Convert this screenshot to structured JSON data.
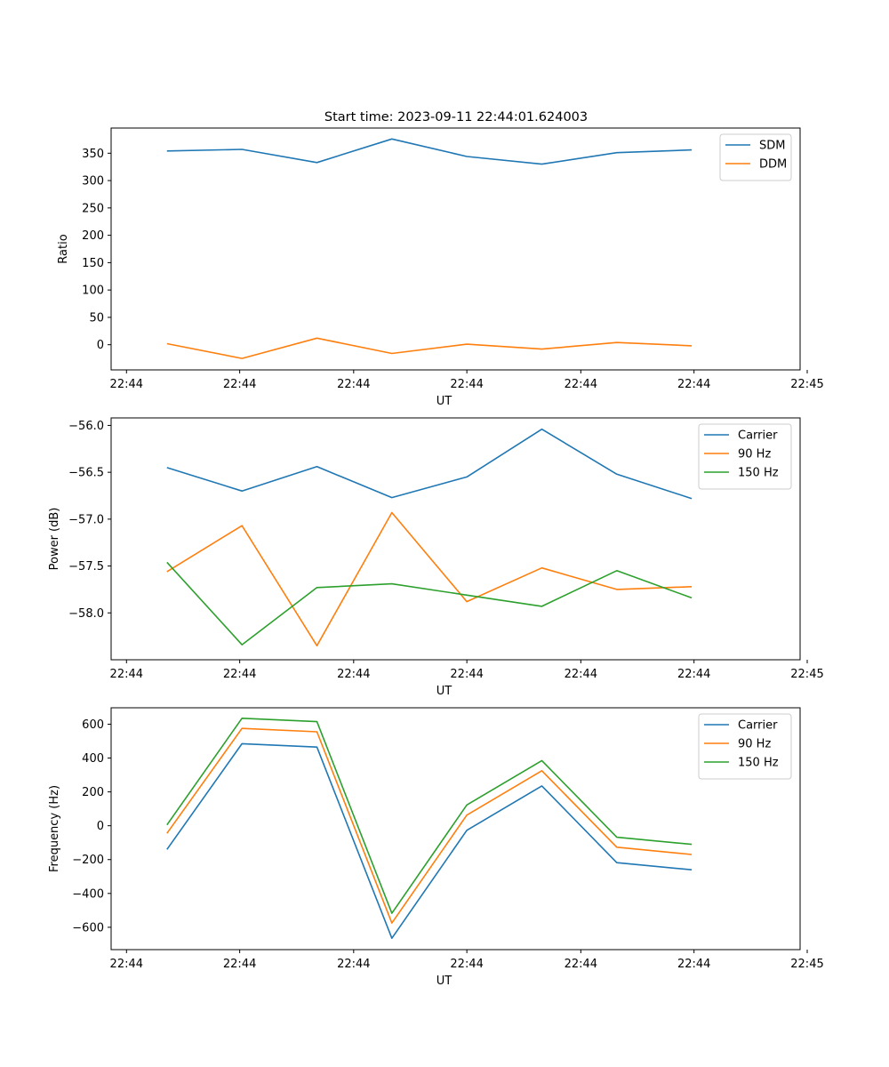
{
  "figure_title": "Start time: 2023-09-11 22:44:01.624003",
  "chart_data": [
    {
      "type": "line",
      "title": "Start time: 2023-09-11 22:44:01.624003",
      "xlabel": "UT",
      "ylabel": "Ratio",
      "x_tick_labels": [
        "22:44",
        "22:44",
        "22:44",
        "22:44",
        "22:44",
        "22:44",
        "22:45"
      ],
      "y_ticks": [
        0,
        50,
        100,
        150,
        200,
        250,
        300,
        350
      ],
      "y_tick_labels": [
        "0",
        "50",
        "100",
        "150",
        "200",
        "250",
        "300",
        "350"
      ],
      "ylim": [
        -46,
        396
      ],
      "legend_position": "upper right",
      "x_index_range": [
        -0.745,
        8.445
      ],
      "x_tick_index": [
        -0.54,
        0.97,
        2.49,
        4.0,
        5.52,
        7.03,
        8.54
      ],
      "series": [
        {
          "name": "SDM",
          "color": "#1f77b4",
          "values": [
            354,
            357,
            333,
            376,
            344,
            330,
            351,
            356
          ]
        },
        {
          "name": "DDM",
          "color": "#ff7f0e",
          "values": [
            2,
            -25,
            12,
            -16,
            1,
            -8,
            4,
            -2
          ]
        }
      ]
    },
    {
      "type": "line",
      "title": "",
      "xlabel": "UT",
      "ylabel": "Power (dB)",
      "x_tick_labels": [
        "22:44",
        "22:44",
        "22:44",
        "22:44",
        "22:44",
        "22:44",
        "22:45"
      ],
      "y_ticks": [
        -58.0,
        -57.5,
        -57.0,
        -56.5,
        -56.0
      ],
      "y_tick_labels": [
        "−58.0",
        "−57.5",
        "−57.0",
        "−56.5",
        "−56.0"
      ],
      "ylim": [
        -58.5,
        -55.92
      ],
      "legend_position": "upper right",
      "x_index_range": [
        -0.745,
        8.445
      ],
      "x_tick_index": [
        -0.54,
        0.97,
        2.49,
        4.0,
        5.52,
        7.03,
        8.54
      ],
      "series": [
        {
          "name": "Carrier",
          "color": "#1f77b4",
          "values": [
            -56.45,
            -56.7,
            -56.44,
            -56.77,
            -56.55,
            -56.04,
            -56.52,
            -56.78
          ]
        },
        {
          "name": "90 Hz",
          "color": "#ff7f0e",
          "values": [
            -57.56,
            -57.07,
            -58.35,
            -56.93,
            -57.88,
            -57.52,
            -57.75,
            -57.72
          ]
        },
        {
          "name": "150 Hz",
          "color": "#2ca02c",
          "values": [
            -57.46,
            -58.34,
            -57.73,
            -57.69,
            -57.81,
            -57.93,
            -57.55,
            -57.84
          ]
        }
      ]
    },
    {
      "type": "line",
      "title": "",
      "xlabel": "UT",
      "ylabel": "Frequency (Hz)",
      "x_tick_labels": [
        "22:44",
        "22:44",
        "22:44",
        "22:44",
        "22:44",
        "22:44",
        "22:45"
      ],
      "y_ticks": [
        -600,
        -400,
        -200,
        0,
        200,
        400,
        600
      ],
      "y_tick_labels": [
        "−600",
        "−400",
        "−200",
        "0",
        "200",
        "400",
        "600"
      ],
      "ylim": [
        -732,
        697
      ],
      "legend_position": "upper right",
      "x_index_range": [
        -0.745,
        8.445
      ],
      "x_tick_index": [
        -0.54,
        0.97,
        2.49,
        4.0,
        5.52,
        7.03,
        8.54
      ],
      "series": [
        {
          "name": "Carrier",
          "color": "#1f77b4",
          "values": [
            -140,
            485,
            465,
            -665,
            -27,
            235,
            -218,
            -260
          ]
        },
        {
          "name": "90 Hz",
          "color": "#ff7f0e",
          "values": [
            -45,
            575,
            555,
            -575,
            63,
            325,
            -127,
            -170
          ]
        },
        {
          "name": "150 Hz",
          "color": "#2ca02c",
          "values": [
            5,
            635,
            615,
            -517,
            123,
            385,
            -68,
            -110
          ]
        }
      ]
    }
  ]
}
